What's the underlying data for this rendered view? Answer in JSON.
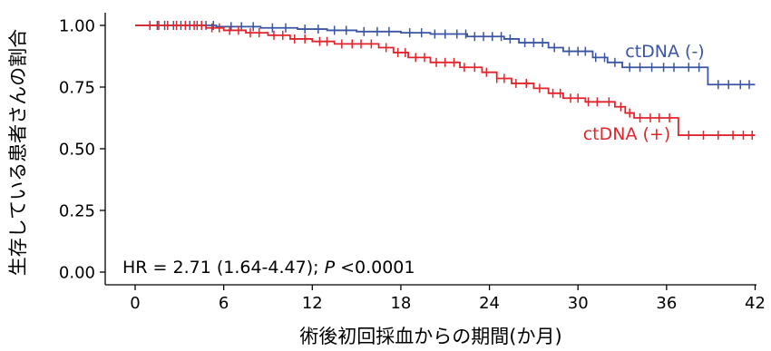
{
  "chart_data": {
    "type": "line",
    "xlabel": "術後初回採血からの期間(か月)",
    "ylabel": "生存している患者さんの割合",
    "xlim": [
      0,
      42
    ],
    "ylim": [
      0,
      1
    ],
    "xticks": [
      {
        "value": 0,
        "label": "0"
      },
      {
        "value": 6,
        "label": "6"
      },
      {
        "value": 12,
        "label": "12"
      },
      {
        "value": 18,
        "label": "18"
      },
      {
        "value": 24,
        "label": "24"
      },
      {
        "value": 30,
        "label": "30"
      },
      {
        "value": 36,
        "label": "36"
      },
      {
        "value": 42,
        "label": "42"
      }
    ],
    "yticks": [
      {
        "value": 0.0,
        "label": "0.00"
      },
      {
        "value": 0.25,
        "label": "0.25"
      },
      {
        "value": 0.5,
        "label": "0.50"
      },
      {
        "value": 0.75,
        "label": "0.75"
      },
      {
        "value": 1.0,
        "label": "1.00"
      }
    ],
    "grid": false,
    "annotation": {
      "hr_text": "HR = 2.71 (1.64-4.47); ",
      "p_symbol": "P",
      "p_text": " <0.0001"
    },
    "series": [
      {
        "name": "ctDNA (-)",
        "color": "#3a55a4",
        "steps": [
          [
            0,
            1.0
          ],
          [
            5.5,
            0.995
          ],
          [
            8.5,
            0.99
          ],
          [
            11,
            0.985
          ],
          [
            13,
            0.98
          ],
          [
            15,
            0.975
          ],
          [
            18,
            0.97
          ],
          [
            20,
            0.965
          ],
          [
            22.5,
            0.955
          ],
          [
            25,
            0.945
          ],
          [
            26,
            0.93
          ],
          [
            28,
            0.91
          ],
          [
            29,
            0.895
          ],
          [
            31,
            0.87
          ],
          [
            32,
            0.85
          ],
          [
            33,
            0.83
          ],
          [
            38.8,
            0.76
          ]
        ],
        "end": 42,
        "censor": [
          1,
          1.5,
          2,
          2.6,
          3.1,
          3.7,
          4.2,
          4.8,
          5.3,
          6.5,
          7.2,
          8,
          9.3,
          10.2,
          11.5,
          12.4,
          13.5,
          14.3,
          15.5,
          16.4,
          17.2,
          18.6,
          19.4,
          20.3,
          21,
          21.8,
          22.4,
          23,
          23.6,
          24.2,
          24.8,
          25.4,
          26.4,
          27,
          27.6,
          28.4,
          29.4,
          30,
          30.5,
          31.2,
          31.8,
          32.5,
          33.5,
          34.2,
          35,
          35.8,
          36.5,
          37.5,
          38.2,
          39.5,
          40.2,
          41,
          41.6
        ]
      },
      {
        "name": "ctDNA (+)",
        "color": "#e3242b",
        "steps": [
          [
            0,
            1.0
          ],
          [
            4.8,
            0.99
          ],
          [
            6,
            0.98
          ],
          [
            7.5,
            0.97
          ],
          [
            9,
            0.96
          ],
          [
            10.5,
            0.945
          ],
          [
            12,
            0.935
          ],
          [
            13.5,
            0.925
          ],
          [
            16.5,
            0.91
          ],
          [
            17.5,
            0.89
          ],
          [
            18.5,
            0.87
          ],
          [
            20,
            0.85
          ],
          [
            22,
            0.83
          ],
          [
            23.5,
            0.81
          ],
          [
            24.5,
            0.785
          ],
          [
            25.5,
            0.765
          ],
          [
            27,
            0.745
          ],
          [
            28,
            0.725
          ],
          [
            29,
            0.705
          ],
          [
            30.5,
            0.69
          ],
          [
            32.5,
            0.67
          ],
          [
            33.2,
            0.645
          ],
          [
            33.8,
            0.625
          ],
          [
            36.8,
            0.555
          ]
        ],
        "end": 42,
        "censor": [
          1,
          1.6,
          2.2,
          2.8,
          3.4,
          4,
          4.5,
          5.2,
          5.7,
          6.4,
          7,
          7.8,
          8.4,
          9.4,
          10,
          10.8,
          11.5,
          12.5,
          13,
          14,
          14.7,
          15.3,
          16,
          17,
          17.8,
          18.3,
          19,
          19.6,
          20.4,
          21,
          21.6,
          22.3,
          23,
          23.8,
          24.5,
          25,
          25.8,
          26.5,
          27.4,
          28.3,
          28.8,
          29.5,
          30,
          30.7,
          31.3,
          32.1,
          32.9,
          33.5,
          34.2,
          34.9,
          35.5,
          36.2,
          37.5,
          38.5,
          39.5,
          40.5,
          41.2,
          41.8
        ]
      }
    ]
  }
}
